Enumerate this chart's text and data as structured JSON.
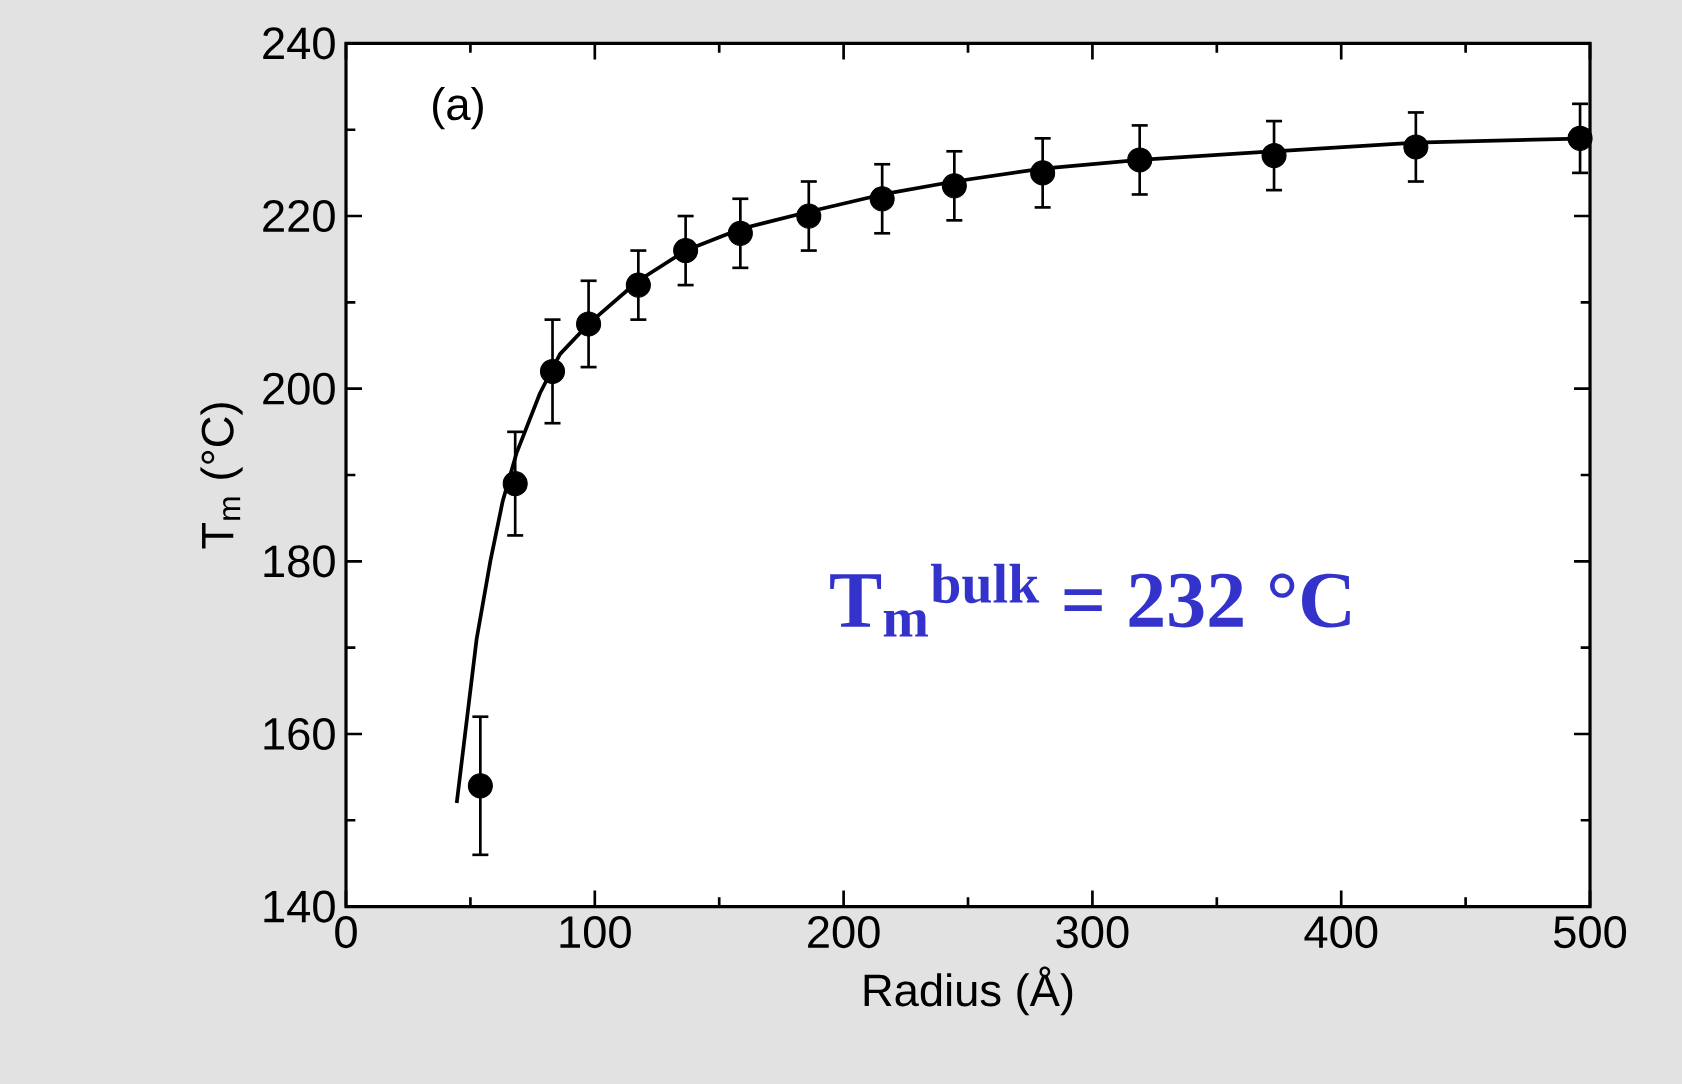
{
  "chart_data": {
    "type": "scatter",
    "xlabel": "Radius  (Å)",
    "ylabel": "T$_{m}$   (°C)",
    "annotations": [
      "(a)",
      "T$_{m}$$^{bulk}$ = 232 °C"
    ],
    "xlim": [
      0,
      500
    ],
    "ylim": [
      140,
      240
    ],
    "xticks": [
      0,
      100,
      200,
      300,
      400,
      500
    ],
    "yticks": [
      140,
      160,
      180,
      200,
      220,
      240
    ],
    "series": [
      {
        "color": "#000000",
        "marker": "circle",
        "x": [
          54,
          68,
          83,
          97.5,
          117.5,
          136.5,
          158.5,
          186,
          215.5,
          244.5,
          280,
          319,
          373,
          430,
          496
        ],
        "values": [
          154,
          189,
          202,
          207.5,
          212,
          216,
          218,
          220,
          222,
          223.5,
          225,
          226.5,
          227,
          228,
          229
        ],
        "errors": [
          8,
          6,
          6,
          5,
          4,
          4,
          4,
          4,
          4,
          4,
          4,
          4,
          4,
          4,
          4
        ]
      },
      {
        "type": "line",
        "color": "#000000",
        "marker": "none",
        "line_style": "solid",
        "x": [
          44.5,
          48.5,
          52.5,
          58,
          63,
          68.5,
          78,
          86,
          97.5,
          117.5,
          136.5,
          158.5,
          186,
          215.5,
          244.5,
          280,
          319,
          373,
          430,
          500
        ],
        "values": [
          152,
          161.5,
          171,
          180,
          187,
          192.5,
          199.5,
          204,
          207.5,
          212.5,
          216,
          218.5,
          220.5,
          222.5,
          224,
          225.5,
          226.5,
          227.5,
          228.5,
          229
        ]
      }
    ]
  }
}
